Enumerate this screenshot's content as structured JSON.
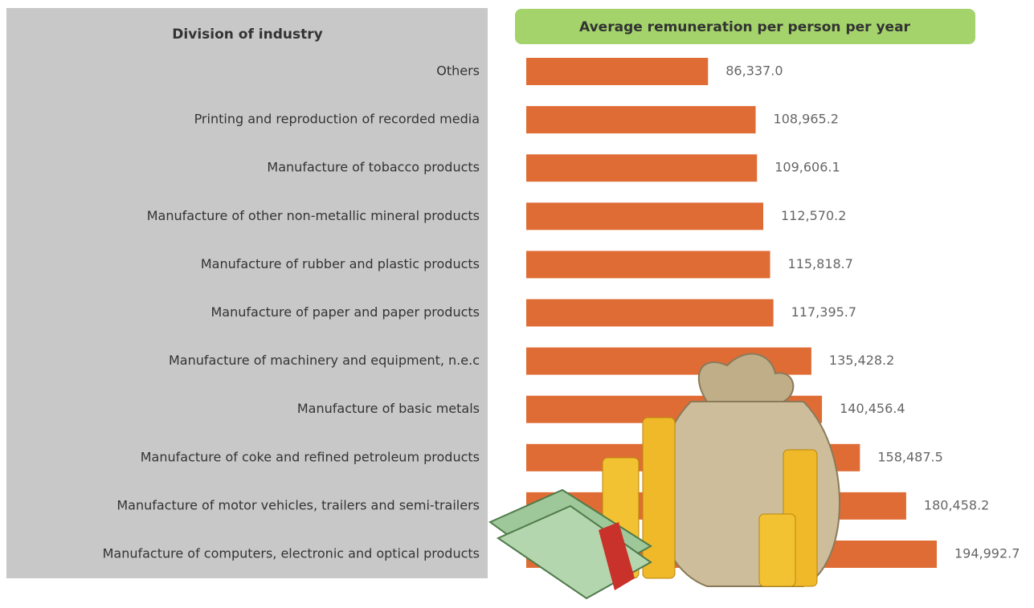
{
  "chart_data": {
    "type": "bar",
    "orientation": "horizontal",
    "title": "Average remuneration per person per year",
    "category_label": "Division of industry",
    "categories": [
      "Others",
      "Printing and reproduction of recorded media",
      "Manufacture of tobacco products",
      "Manufacture of other non-metallic mineral products",
      "Manufacture of rubber and plastic products",
      "Manufacture of paper and paper products",
      "Manufacture of machinery and equipment, n.e.c",
      "Manufacture of basic metals",
      "Manufacture of coke and refined petroleum products",
      "Manufacture of motor vehicles, trailers and semi-trailers",
      "Manufacture of computers, electronic and optical products"
    ],
    "values": [
      86337.0,
      108965.2,
      109606.1,
      112570.2,
      115818.7,
      117395.7,
      135428.2,
      140456.4,
      158487.5,
      180458.2,
      194992.7
    ],
    "value_labels": [
      "86,337.0",
      "108,965.2",
      "109,606.1",
      "112,570.2",
      "115,818.7",
      "117,395.7",
      "135,428.2",
      "140,456.4",
      "158,487.5",
      "180,458.2",
      "194,992.7"
    ],
    "color": "#e06c35"
  }
}
